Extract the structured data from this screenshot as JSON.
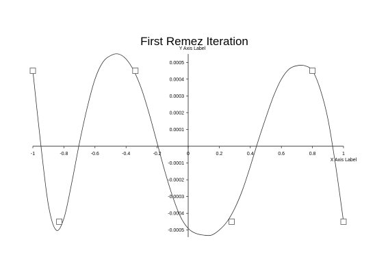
{
  "chart_data": {
    "type": "line",
    "title": "First Remez Iteration",
    "xlabel": "X Axis Label",
    "ylabel": "Y Axis Label",
    "xlim": [
      -1,
      1
    ],
    "ylim": [
      -0.00055,
      0.00055
    ],
    "grid": false,
    "x_ticks": [
      -1,
      -0.8,
      -0.6,
      -0.4,
      -0.2,
      0,
      0.2,
      0.4,
      0.6,
      0.8,
      1
    ],
    "x_tick_labels": [
      "-1",
      "-0.8",
      "-0.6",
      "-0.4",
      "-0.2",
      "0",
      "0.2",
      "0.4",
      "0.6",
      "0.8",
      "1"
    ],
    "y_ticks": [
      -0.0005,
      -0.0004,
      -0.0003,
      -0.0002,
      -0.0001,
      0.0001,
      0.0002,
      0.0003,
      0.0004,
      0.0005
    ],
    "y_tick_labels": [
      "-0.0005",
      "-0.0004",
      "-0.0003",
      "-0.0002",
      "-0.0001",
      "0.0001",
      "0.0002",
      "0.0003",
      "0.0004",
      "0.0005"
    ],
    "series": [
      {
        "values_x": [
          -1,
          -0.95,
          -0.9,
          -0.85,
          -0.8,
          -0.75,
          -0.7,
          -0.65,
          -0.6,
          -0.55,
          -0.5,
          -0.45,
          -0.4,
          -0.35,
          -0.3,
          -0.25,
          -0.2,
          -0.15,
          -0.1,
          -0.05,
          0,
          0.05,
          0.1,
          0.15,
          0.2,
          0.25,
          0.3,
          0.35,
          0.4,
          0.45,
          0.5,
          0.55,
          0.6,
          0.65,
          0.7,
          0.75,
          0.8,
          0.85,
          0.9,
          0.95,
          1
        ],
        "values_y": [
          0.00045,
          2e-05,
          -0.00035,
          -0.0005,
          -0.00043,
          -0.00022,
          2e-05,
          0.00023,
          0.0004,
          0.0005,
          0.00054,
          0.00055,
          0.00052,
          0.00045,
          0.00034,
          0.00019,
          2e-05,
          -0.00015,
          -0.0003,
          -0.00042,
          -0.00049,
          -0.00052,
          -0.00053,
          -0.00053,
          -0.0005,
          -0.00045,
          -0.00037,
          -0.00026,
          -0.00012,
          3e-05,
          0.00017,
          0.0003,
          0.0004,
          0.00046,
          0.00048,
          0.00048,
          0.00045,
          0.00034,
          0.00016,
          -0.00012,
          -0.00045
        ]
      }
    ],
    "markers": {
      "shape": "square",
      "x": [
        -1,
        -0.83,
        -0.34,
        0.28,
        0.8,
        1
      ],
      "y": [
        0.00045,
        -0.00045,
        0.00045,
        -0.00045,
        0.00045,
        -0.00045
      ]
    }
  }
}
